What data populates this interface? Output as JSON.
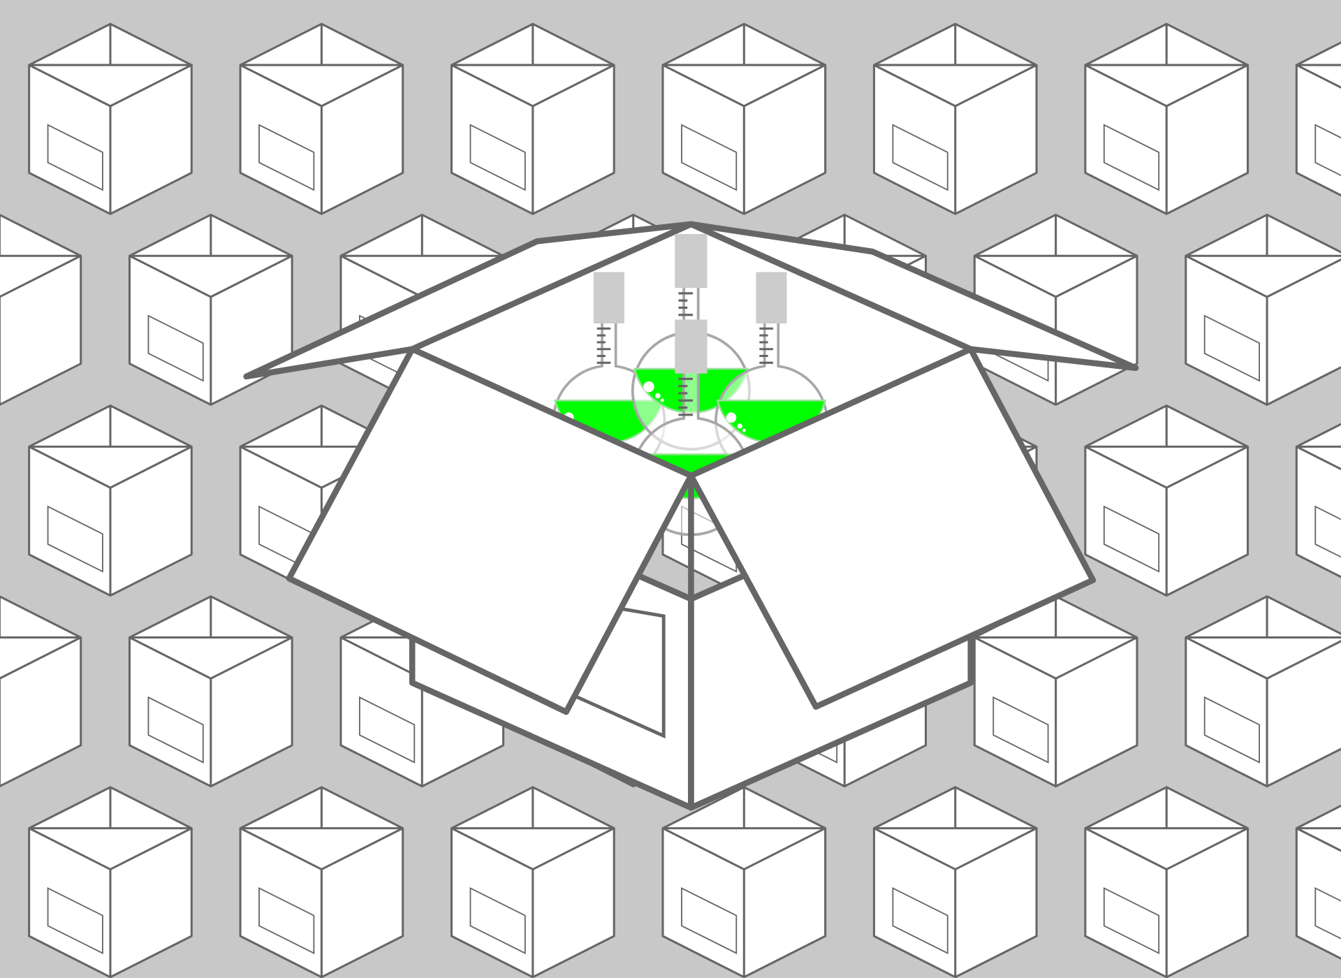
{
  "colors": {
    "background": "#c8c8c8",
    "box_fill": "#ffffff",
    "box_stroke": "#666666",
    "liquid": "#00ff00",
    "glass_stroke": "#a8a8a8",
    "stopper": "#cccccc"
  },
  "pattern": {
    "box_icon": "closed-shipping-box-icon",
    "columns": 7,
    "rows": 5
  },
  "hero": {
    "box_icon": "open-shipping-box-icon",
    "contents_icon": "green-flask-icon",
    "flask_count": 4
  }
}
